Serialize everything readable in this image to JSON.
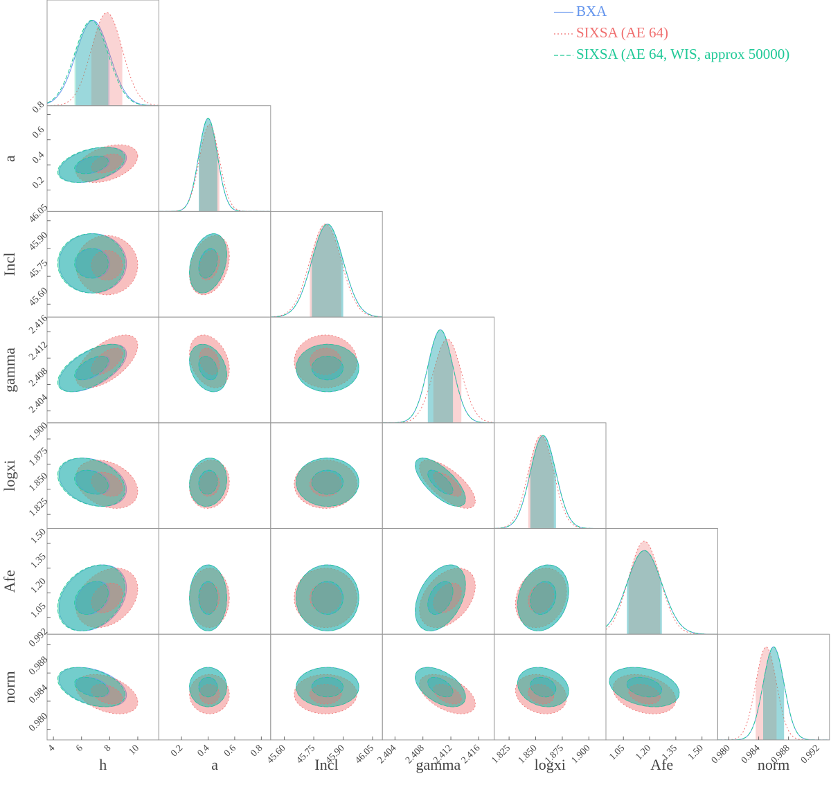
{
  "chart_data": {
    "type": "corner",
    "legend": "upper right",
    "parameters": [
      {
        "name": "h",
        "lim": [
          3.55,
          11.5
        ],
        "ticks": [
          4,
          6,
          8,
          10
        ]
      },
      {
        "name": "a",
        "lim": [
          0.03,
          0.87
        ],
        "ticks": [
          0.2,
          0.4,
          0.6,
          0.8
        ]
      },
      {
        "name": "Incl",
        "lim": [
          45.53,
          46.1
        ],
        "ticks": [
          {
            "value": 45.6,
            "label": "45.60"
          },
          45.75,
          {
            "value": 45.9,
            "label": "45.90"
          },
          46.05
        ]
      },
      {
        "name": "gamma",
        "lim": [
          2.4022,
          2.4182
        ],
        "ticks": [
          2.404,
          2.408,
          2.412,
          2.416
        ]
      },
      {
        "name": "logxi",
        "lim": [
          1.811,
          1.916
        ],
        "ticks": [
          1.825,
          {
            "value": 1.85,
            "label": "1.850"
          },
          1.875,
          {
            "value": 1.9,
            "label": "1.900"
          }
        ]
      },
      {
        "name": "Afe",
        "lim": [
          0.95,
          1.59
        ],
        "ticks": [
          1.05,
          {
            "value": 1.2,
            "label": "1.20"
          },
          1.35,
          {
            "value": 1.5,
            "label": "1.50"
          }
        ]
      },
      {
        "name": "norm",
        "lim": [
          0.9785,
          0.9935
        ],
        "ticks": [
          {
            "value": 0.98,
            "label": "0.980"
          },
          0.984,
          0.988,
          0.992
        ]
      }
    ],
    "series": [
      {
        "name": "BXA",
        "color": "#6495ed",
        "linestyle": "solid",
        "mean": [
          6.8,
          0.4,
          45.82,
          2.4105,
          1.857,
          1.17,
          0.986
        ],
        "sd": [
          1.2,
          0.07,
          0.08,
          0.0018,
          0.012,
          0.1,
          0.0014
        ]
      },
      {
        "name": "SIXSA (AE 64)",
        "color": "#f07070",
        "linestyle": "dotted",
        "mean": [
          7.8,
          0.41,
          45.81,
          2.4115,
          1.855,
          1.17,
          0.985
        ],
        "sd": [
          1.1,
          0.075,
          0.08,
          0.002,
          0.012,
          0.09,
          0.0014
        ]
      },
      {
        "name": "SIXSA (AE 64, WIS, approx 50000)",
        "color": "#20c997",
        "linestyle": "dashed",
        "mean": [
          6.7,
          0.4,
          45.82,
          2.4105,
          1.857,
          1.17,
          0.986
        ],
        "sd": [
          1.2,
          0.07,
          0.08,
          0.0018,
          0.012,
          0.1,
          0.0014
        ]
      }
    ],
    "correlations": [
      0.4,
      0,
      0.3,
      0.6,
      -0.3,
      0,
      -0.3,
      0.1,
      0,
      -0.7,
      0.3,
      0,
      0,
      0.4,
      0.2,
      -0.4,
      0,
      0,
      -0.5,
      -0.2,
      -0.3
    ]
  }
}
